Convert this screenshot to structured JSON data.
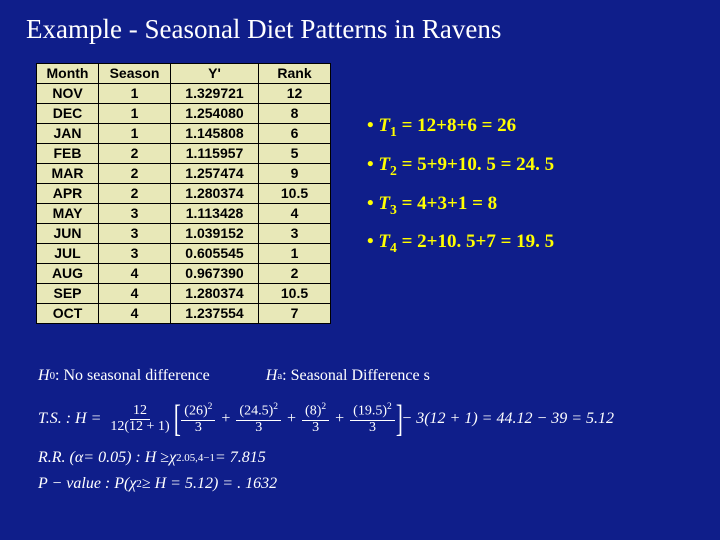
{
  "title": "Example - Seasonal Diet Patterns in Ravens",
  "table": {
    "headers": {
      "month": "Month",
      "season": "Season",
      "y": "Y'",
      "rank": "Rank"
    },
    "rows": [
      {
        "month": "NOV",
        "season": "1",
        "y": "1.329721",
        "rank": "12"
      },
      {
        "month": "DEC",
        "season": "1",
        "y": "1.254080",
        "rank": "8"
      },
      {
        "month": "JAN",
        "season": "1",
        "y": "1.145808",
        "rank": "6"
      },
      {
        "month": "FEB",
        "season": "2",
        "y": "1.115957",
        "rank": "5"
      },
      {
        "month": "MAR",
        "season": "2",
        "y": "1.257474",
        "rank": "9"
      },
      {
        "month": "APR",
        "season": "2",
        "y": "1.280374",
        "rank": "10.5"
      },
      {
        "month": "MAY",
        "season": "3",
        "y": "1.113428",
        "rank": "4"
      },
      {
        "month": "JUN",
        "season": "3",
        "y": "1.039152",
        "rank": "3"
      },
      {
        "month": "JUL",
        "season": "3",
        "y": "0.605545",
        "rank": "1"
      },
      {
        "month": "AUG",
        "season": "4",
        "y": "0.967390",
        "rank": "2"
      },
      {
        "month": "SEP",
        "season": "4",
        "y": "1.280374",
        "rank": "10.5"
      },
      {
        "month": "OCT",
        "season": "4",
        "y": "1.237554",
        "rank": "7"
      }
    ]
  },
  "bullets": {
    "t1": {
      "label": "T",
      "sub": "1",
      "expr": " = 12+8+6 = 26"
    },
    "t2": {
      "label": "T",
      "sub": "2",
      "expr": " = 5+9+10. 5 = 24. 5"
    },
    "t3": {
      "label": "T",
      "sub": "3",
      "expr": " = 4+3+1 = 8"
    },
    "t4": {
      "label": "T",
      "sub": "4",
      "expr": " = 2+10. 5+7 = 19. 5"
    }
  },
  "formulas": {
    "h0_label": "H",
    "h0_sub": "0",
    "h0_text": " : No seasonal difference",
    "ha_label": "H",
    "ha_sub": "a",
    "ha_text": " : Seasonal Difference s",
    "ts_prefix": "T.S. : H =",
    "frac1_num": "12",
    "frac1_den": "12(12 + 1)",
    "sq1_num": "(26)",
    "sq2_num": "(24.5)",
    "sq3_num": "(8)",
    "sq4_num": "(19.5)",
    "sq_den": "3",
    "ts_tail": "− 3(12 + 1) = 44.12 − 39 = 5.12",
    "rr_prefix": "R.R. (",
    "rr_alpha": "α",
    "rr_mid": " = 0.05) : H ≥ ",
    "rr_chi": "χ",
    "rr_chi_sup": "2",
    "rr_chi_sub": ".05,4−1",
    "rr_val": " = 7.815",
    "pv_prefix": "P − value : P(",
    "pv_chi": "χ",
    "pv_sup": "2",
    "pv_tail": " ≥ H = 5.12) = . 1632"
  },
  "style": {
    "background": "#0f1e8a",
    "title_color": "#ffffff",
    "bullet_color": "#ffff00",
    "table_bg": "#e8e8b8",
    "border_color": "#000000"
  }
}
